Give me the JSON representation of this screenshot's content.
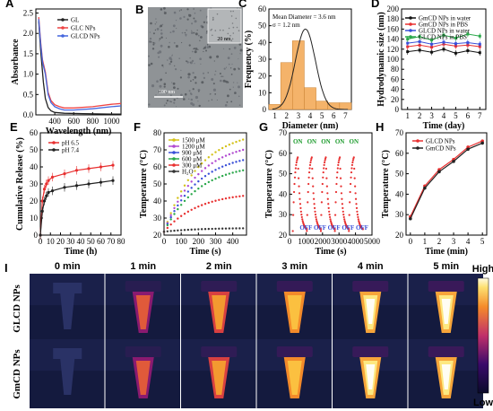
{
  "panels": {
    "A": {
      "letter": "A",
      "ylabel": "Absorbance",
      "xlabel": "Wavelength (nm)",
      "yticks": [
        "0.0",
        "0.5",
        "1.0",
        "1.5",
        "2.0",
        "2.5"
      ],
      "xticks": [
        "400",
        "600",
        "800",
        "1000"
      ]
    },
    "B": {
      "letter": "B",
      "inset_scale": "20 nm",
      "scale": "100 nm"
    },
    "C": {
      "letter": "C",
      "ylabel": "Frequency (%)",
      "xlabel": "Diameter (nm)",
      "xticks": [
        "1",
        "2",
        "3",
        "4",
        "5",
        "6",
        "7"
      ],
      "yticks": [
        "0",
        "10",
        "20",
        "30",
        "40",
        "50",
        "60"
      ],
      "annot1": "Mean Diameter = 3.6 nm",
      "annot2": "σ = 1.2 nm"
    },
    "D": {
      "letter": "D",
      "ylabel": "Hydrodynamic size (nm)",
      "xlabel": "Time (day)",
      "xticks": [
        "1",
        "2",
        "3",
        "4",
        "5",
        "6",
        "7"
      ],
      "yticks": [
        "0",
        "20",
        "40",
        "60",
        "80",
        "100",
        "120",
        "140",
        "160",
        "180",
        "200"
      ]
    },
    "E": {
      "letter": "E",
      "ylabel": "Cumulative Release (%)",
      "xlabel": "Time (h)",
      "xticks": [
        "0",
        "10",
        "20",
        "30",
        "40",
        "50",
        "60",
        "70",
        "80"
      ],
      "yticks": [
        "0",
        "10",
        "20",
        "30",
        "40",
        "50",
        "60"
      ]
    },
    "F": {
      "letter": "F",
      "ylabel": "Temperature (°C)",
      "xlabel": "Time (s)",
      "xticks": [
        "0",
        "100",
        "200",
        "300",
        "400"
      ],
      "yticks": [
        "20",
        "30",
        "40",
        "50",
        "60",
        "70",
        "80"
      ]
    },
    "G": {
      "letter": "G",
      "ylabel": "Temperature (°C)",
      "xlabel": "Time (s)",
      "xticks": [
        "0",
        "1000",
        "2000",
        "3000",
        "4000",
        "5000"
      ],
      "yticks": [
        "20",
        "30",
        "40",
        "50",
        "60",
        "70"
      ],
      "on": "ON",
      "off": "OFF"
    },
    "H": {
      "letter": "H",
      "ylabel": "Temperature (°C)",
      "xlabel": "Time (min)",
      "xticks": [
        "0",
        "1",
        "2",
        "3",
        "4",
        "5"
      ],
      "yticks": [
        "20",
        "30",
        "40",
        "50",
        "60",
        "70"
      ]
    },
    "I": {
      "letter": "I",
      "rows": [
        "GLCD NPs",
        "GmCD NPs"
      ],
      "times": [
        "0 min",
        "1 min",
        "2 min",
        "3 min",
        "4 min",
        "5 min"
      ],
      "high": "High",
      "low": "Low"
    }
  },
  "chart_data": [
    {
      "panel": "A",
      "type": "line",
      "xlim": [
        200,
        1100
      ],
      "ylim": [
        0,
        2.6
      ],
      "series": [
        {
          "name": "GL",
          "color": "#222222",
          "x": [
            230,
            250,
            280,
            300,
            330,
            360,
            400,
            500,
            700,
            1000,
            1100
          ],
          "y": [
            2.3,
            1.6,
            0.8,
            0.4,
            0.18,
            0.1,
            0.06,
            0.04,
            0.03,
            0.02,
            0.02
          ]
        },
        {
          "name": "GLC NPs",
          "color": "#ee4444",
          "x": [
            230,
            250,
            270,
            300,
            330,
            360,
            400,
            450,
            500,
            600,
            800,
            1000,
            1100
          ],
          "y": [
            2.4,
            1.8,
            1.35,
            1.05,
            0.55,
            0.35,
            0.25,
            0.2,
            0.17,
            0.17,
            0.2,
            0.26,
            0.28
          ]
        },
        {
          "name": "GLCD NPs",
          "color": "#4466dd",
          "x": [
            230,
            250,
            270,
            300,
            330,
            360,
            400,
            450,
            500,
            600,
            800,
            1000,
            1100
          ],
          "y": [
            2.35,
            1.75,
            1.3,
            1.0,
            0.5,
            0.3,
            0.2,
            0.15,
            0.12,
            0.12,
            0.15,
            0.2,
            0.22
          ]
        }
      ]
    },
    {
      "panel": "C",
      "type": "bar",
      "categories": [
        "1",
        "2",
        "3",
        "4",
        "5",
        "6",
        "7"
      ],
      "values": [
        3,
        28,
        41,
        13,
        5,
        4,
        4
      ],
      "fit_mean": 3.6,
      "fit_sigma": 1.2,
      "ylim": [
        0,
        60
      ]
    },
    {
      "panel": "D",
      "type": "line",
      "xlim": [
        0.5,
        7.5
      ],
      "ylim": [
        0,
        200
      ],
      "series": [
        {
          "name": "GmCD NPs in water",
          "color": "#111111",
          "x": [
            1,
            2,
            3,
            4,
            5,
            6,
            7
          ],
          "y": [
            115,
            118,
            114,
            120,
            112,
            117,
            113
          ]
        },
        {
          "name": "GmCD NPs in PBS",
          "color": "#e83030",
          "x": [
            1,
            2,
            3,
            4,
            5,
            6,
            7
          ],
          "y": [
            125,
            128,
            124,
            130,
            126,
            128,
            125
          ]
        },
        {
          "name": "GLCD NPs in water",
          "color": "#3a4fd8",
          "x": [
            1,
            2,
            3,
            4,
            5,
            6,
            7
          ],
          "y": [
            132,
            135,
            130,
            134,
            131,
            133,
            130
          ]
        },
        {
          "name": "GLCD NPs in PBS",
          "color": "#2aa84a",
          "x": [
            1,
            2,
            3,
            4,
            5,
            6,
            7
          ],
          "y": [
            140,
            145,
            138,
            148,
            142,
            150,
            146
          ]
        }
      ]
    },
    {
      "panel": "E",
      "type": "line",
      "xlim": [
        0,
        80
      ],
      "ylim": [
        0,
        60
      ],
      "series": [
        {
          "name": "pH 6.5",
          "color": "#e83030",
          "x": [
            0,
            2,
            4,
            6,
            8,
            12,
            24,
            36,
            48,
            60,
            72
          ],
          "y": [
            0,
            20,
            27,
            30,
            32,
            34,
            36,
            38,
            39,
            40,
            41
          ]
        },
        {
          "name": "pH 7.4",
          "color": "#222222",
          "x": [
            0,
            2,
            4,
            6,
            8,
            12,
            24,
            36,
            48,
            60,
            72
          ],
          "y": [
            0,
            14,
            20,
            23,
            25,
            26,
            28,
            29,
            30,
            31,
            32
          ]
        }
      ]
    },
    {
      "panel": "F",
      "type": "line",
      "xlim": [
        0,
        480
      ],
      "ylim": [
        20,
        80
      ],
      "series": [
        {
          "name": "1500 μM",
          "color": "#d4c21a",
          "final": 76
        },
        {
          "name": "1200 μM",
          "color": "#b14ad1",
          "final": 70
        },
        {
          "name": "900 μM",
          "color": "#3a4fd8",
          "final": 64
        },
        {
          "name": "600 μM",
          "color": "#2aa84a",
          "final": 58
        },
        {
          "name": "300 μM",
          "color": "#e83030",
          "final": 43
        },
        {
          "name": "H₂O",
          "color": "#333333",
          "final": 24
        }
      ]
    },
    {
      "panel": "G",
      "type": "line",
      "xlim": [
        0,
        5000
      ],
      "ylim": [
        20,
        70
      ],
      "cycles": 5,
      "peak": 58,
      "base": 22
    },
    {
      "panel": "H",
      "type": "line",
      "xlim": [
        -0.3,
        5.3
      ],
      "ylim": [
        20,
        70
      ],
      "series": [
        {
          "name": "GLCD NPs",
          "color": "#e83030",
          "x": [
            0,
            1,
            2,
            3,
            4,
            5
          ],
          "y": [
            29,
            44,
            52,
            57,
            63,
            66
          ]
        },
        {
          "name": "GmCD NPs",
          "color": "#222222",
          "x": [
            0,
            1,
            2,
            3,
            4,
            5
          ],
          "y": [
            28,
            43,
            51,
            56,
            62,
            65
          ]
        }
      ]
    }
  ],
  "thermal": {
    "levels": [
      0,
      0.45,
      0.65,
      0.82,
      0.92,
      0.98
    ]
  }
}
